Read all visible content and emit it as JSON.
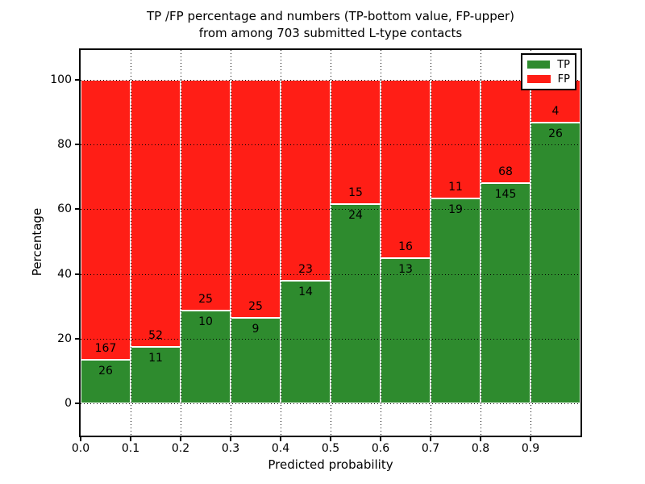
{
  "title": {
    "line1": "TP /FP percentage and numbers (TP-bottom value, FP-upper)",
    "line2": "from among 703 submitted L-type contacts"
  },
  "chart_data": {
    "type": "bar",
    "stacked": true,
    "title": "TP /FP percentage and numbers (TP-bottom value, FP-upper) from among 703 submitted L-type contacts",
    "xlabel": "Predicted probability",
    "ylabel": "Percentage",
    "total_contacts": 703,
    "bin_width": 0.1,
    "categories": [
      "0.0",
      "0.1",
      "0.2",
      "0.3",
      "0.4",
      "0.5",
      "0.6",
      "0.7",
      "0.8",
      "0.9"
    ],
    "series": [
      {
        "name": "TP",
        "color": "#2e8b2e",
        "counts": [
          26,
          11,
          10,
          9,
          14,
          24,
          13,
          19,
          145,
          26
        ],
        "pct_of_bin": [
          13.5,
          17.5,
          28.6,
          26.5,
          37.8,
          61.5,
          44.8,
          63.3,
          68.1,
          86.7
        ]
      },
      {
        "name": "FP",
        "color": "#ff1e16",
        "counts": [
          167,
          52,
          25,
          25,
          23,
          15,
          16,
          11,
          68,
          4
        ],
        "pct_of_bin": [
          86.5,
          82.5,
          71.4,
          73.5,
          62.2,
          38.5,
          55.2,
          36.7,
          31.9,
          13.3
        ]
      }
    ],
    "y_ticks": [
      0,
      20,
      40,
      60,
      80,
      100
    ],
    "x_ticks": [
      "0.0",
      "0.1",
      "0.2",
      "0.3",
      "0.4",
      "0.5",
      "0.6",
      "0.7",
      "0.8",
      "0.9"
    ],
    "ylim": [
      -10,
      109
    ],
    "xlim": [
      0,
      1
    ],
    "grid": true,
    "grid_style": "dotted",
    "legend_position": "upper right",
    "bar_edge_color": "#ffffff",
    "label_color": "#000000"
  }
}
